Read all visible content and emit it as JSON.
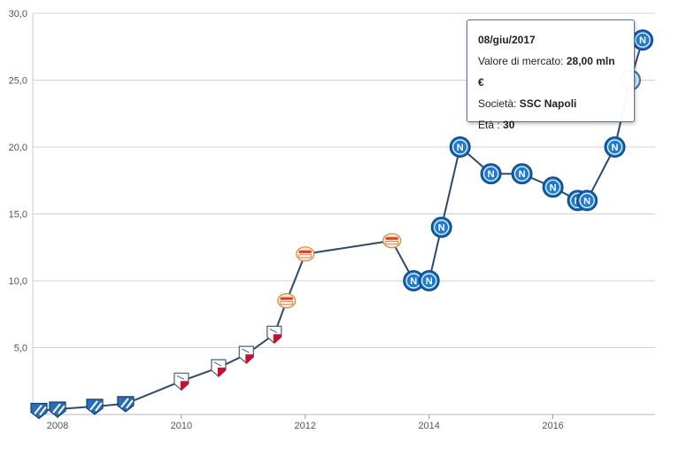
{
  "chart_data": {
    "type": "line",
    "title": "",
    "xlabel": "",
    "ylabel": "",
    "ylim": [
      0,
      30
    ],
    "yticks": [
      "5,0",
      "10,0",
      "15,0",
      "20,0",
      "25,0",
      "30,0"
    ],
    "xticks": [
      "2008",
      "2010",
      "2012",
      "2014",
      "2016"
    ],
    "grid": true,
    "series": [
      {
        "points": [
          {
            "x": 2007.7,
            "y": 0.3,
            "club": "Heerenveen"
          },
          {
            "x": 2008.0,
            "y": 0.4,
            "club": "Heerenveen"
          },
          {
            "x": 2008.6,
            "y": 0.6,
            "club": "Heerenveen"
          },
          {
            "x": 2009.1,
            "y": 0.8,
            "club": "Heerenveen"
          },
          {
            "x": 2010.0,
            "y": 2.5,
            "club": "FC Utrecht"
          },
          {
            "x": 2010.6,
            "y": 3.5,
            "club": "FC Utrecht"
          },
          {
            "x": 2011.05,
            "y": 4.5,
            "club": "FC Utrecht"
          },
          {
            "x": 2011.5,
            "y": 6.0,
            "club": "FC Utrecht"
          },
          {
            "x": 2011.7,
            "y": 8.5,
            "club": "PSV Eindhoven"
          },
          {
            "x": 2012.0,
            "y": 12.0,
            "club": "PSV Eindhoven"
          },
          {
            "x": 2013.4,
            "y": 13.0,
            "club": "PSV Eindhoven"
          },
          {
            "x": 2013.75,
            "y": 10.0,
            "club": "SSC Napoli"
          },
          {
            "x": 2014.0,
            "y": 10.0,
            "club": "SSC Napoli"
          },
          {
            "x": 2014.2,
            "y": 14.0,
            "club": "SSC Napoli"
          },
          {
            "x": 2014.5,
            "y": 20.0,
            "club": "SSC Napoli"
          },
          {
            "x": 2015.0,
            "y": 18.0,
            "club": "SSC Napoli"
          },
          {
            "x": 2015.5,
            "y": 18.0,
            "club": "SSC Napoli"
          },
          {
            "x": 2016.0,
            "y": 17.0,
            "club": "SSC Napoli"
          },
          {
            "x": 2016.4,
            "y": 16.0,
            "club": "SSC Napoli"
          },
          {
            "x": 2016.55,
            "y": 16.0,
            "club": "SSC Napoli"
          },
          {
            "x": 2017.0,
            "y": 20.0,
            "club": "SSC Napoli"
          },
          {
            "x": 2017.25,
            "y": 25.0,
            "club": "SSC Napoli"
          },
          {
            "x": 2017.45,
            "y": 28.0,
            "club": "SSC Napoli"
          }
        ]
      }
    ],
    "colors": {
      "line": "#2e4a6b",
      "grid": "#d3d3d3",
      "napoli": "#1f7ad1",
      "heerenveen": "#2a6fb5",
      "utrecht": "#c8102e",
      "psv": "#e03a2f"
    },
    "icons": {
      "Heerenveen": "heerenveen-crest-icon",
      "FC Utrecht": "utrecht-crest-icon",
      "PSV Eindhoven": "psv-crest-icon",
      "SSC Napoli": "napoli-crest-icon"
    }
  },
  "tooltip": {
    "date": "08/giu/2017",
    "value_label": "Valore di mercato:",
    "value": "28,00 mln €",
    "club_label": "Società:",
    "club": "SSC Napoli",
    "age_label": "Età :",
    "age": "30"
  }
}
